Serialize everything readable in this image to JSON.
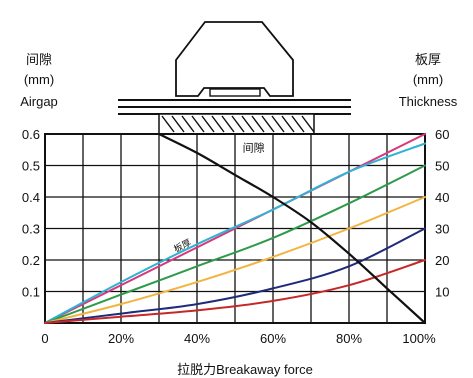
{
  "chart_data": {
    "type": "line",
    "title": "",
    "left_axis": {
      "label_lines": [
        "间隙",
        "(mm)",
        "Airgap"
      ],
      "ticks": [
        0.1,
        0.2,
        0.3,
        0.4,
        0.5,
        0.6
      ],
      "tick_labels": [
        "0.1",
        "0.2",
        "0.3",
        "0.4",
        "0.5",
        "0.6"
      ],
      "ylim": [
        0,
        0.6
      ]
    },
    "right_axis": {
      "label_lines": [
        "板厚",
        "(mm)",
        "Thickness"
      ],
      "ticks": [
        10,
        20,
        30,
        40,
        50,
        60
      ],
      "tick_labels": [
        "10",
        "20",
        "30",
        "40",
        "50",
        "60"
      ],
      "ylim": [
        0,
        60
      ]
    },
    "x_axis": {
      "label": "拉脱力Breakaway force",
      "ticks": [
        0,
        20,
        40,
        60,
        80,
        100
      ],
      "tick_labels": [
        "0",
        "20%",
        "40%",
        "60%",
        "80%",
        "100%"
      ],
      "xlim": [
        0,
        100
      ]
    },
    "grid": true,
    "series": [
      {
        "name": "板厚",
        "axis": "right",
        "color": "#d63a7c",
        "x": [
          0,
          100
        ],
        "y": [
          0,
          60
        ]
      },
      {
        "axis": "right",
        "color": "#2fb3d4",
        "x": [
          0,
          20,
          40,
          60,
          80,
          100
        ],
        "y": [
          0,
          13,
          25,
          36,
          48,
          57
        ]
      },
      {
        "axis": "right",
        "color": "#2e9a4a",
        "x": [
          0,
          20,
          40,
          60,
          80,
          100
        ],
        "y": [
          0,
          9,
          18,
          27,
          38,
          50
        ]
      },
      {
        "axis": "right",
        "color": "#f2b441",
        "x": [
          0,
          20,
          40,
          60,
          80,
          100
        ],
        "y": [
          0,
          6,
          13,
          21,
          30,
          40
        ]
      },
      {
        "axis": "right",
        "color": "#1f2a7a",
        "x": [
          0,
          20,
          40,
          60,
          80,
          100
        ],
        "y": [
          0,
          3,
          6,
          11,
          18,
          30
        ]
      },
      {
        "axis": "right",
        "color": "#c62828",
        "x": [
          0,
          20,
          40,
          60,
          80,
          100
        ],
        "y": [
          0,
          2,
          4,
          7,
          12,
          20
        ]
      },
      {
        "name": "间隙",
        "axis": "left",
        "color": "#111111",
        "x": [
          30,
          40,
          50,
          60,
          70,
          80,
          90,
          100
        ],
        "y": [
          0.6,
          0.54,
          0.47,
          0.4,
          0.32,
          0.22,
          0.11,
          0
        ]
      }
    ]
  }
}
